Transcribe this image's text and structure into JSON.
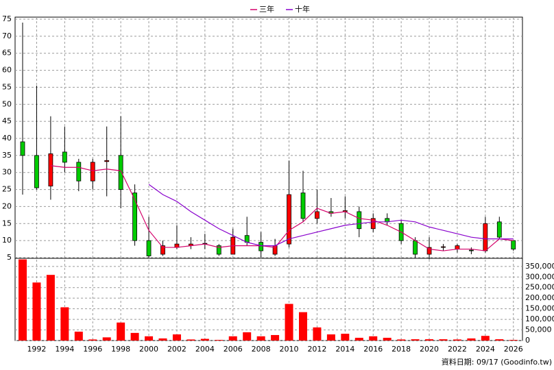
{
  "chart_data": [
    {
      "type": "candlestick",
      "categories": [
        null,
        "1992",
        null,
        "1994",
        null,
        "1996",
        null,
        "1998",
        null,
        "2000",
        null,
        "2002",
        null,
        "2004",
        null,
        "2006",
        null,
        "2008",
        null,
        "2010",
        null,
        "2012",
        null,
        "2014",
        null,
        "2016",
        null,
        "2018",
        null,
        "2020",
        null,
        "2022",
        null,
        "2024",
        null,
        "2026"
      ],
      "open": [
        39,
        35,
        26,
        36,
        33,
        27.5,
        33.2,
        35,
        24,
        10,
        6,
        8,
        8.5,
        9,
        8.5,
        6,
        11.5,
        9.5,
        6,
        9,
        24,
        16.5,
        18.5,
        18.5,
        18.5,
        13.5,
        16.5,
        15,
        10,
        6,
        8,
        7.5,
        7.2,
        7,
        15.5,
        10
      ],
      "high": [
        74,
        55.5,
        46.5,
        43.5,
        34,
        34,
        43.5,
        46.5,
        26.5,
        17,
        10,
        14.5,
        11,
        12,
        9,
        13.5,
        17,
        12.5,
        10.5,
        33.5,
        30.5,
        25,
        22.5,
        23,
        20,
        18,
        18,
        16,
        11,
        11,
        9,
        9,
        8,
        17,
        17,
        10
      ],
      "low": [
        23.5,
        25,
        22,
        30,
        24.5,
        25,
        23,
        19.5,
        8.5,
        5,
        5.5,
        7.5,
        7.5,
        7.5,
        5.5,
        6,
        8.5,
        5,
        5.5,
        8,
        15.5,
        15,
        17,
        16.5,
        11,
        12.5,
        14.5,
        9,
        5,
        4.5,
        7,
        6.5,
        6,
        6.5,
        10.5,
        7
      ],
      "close": [
        35,
        25.5,
        35.5,
        33,
        27.5,
        33,
        33.5,
        25,
        10,
        5.5,
        8.5,
        9,
        9,
        9.2,
        6,
        11,
        9.5,
        7,
        8.5,
        23.5,
        16.5,
        18.5,
        18,
        18.8,
        13.5,
        16.5,
        15.5,
        10,
        6,
        8,
        8.2,
        8.5,
        7,
        15,
        11,
        7.5
      ],
      "up_color": "#ff0000",
      "down_color": "#00cc00",
      "series": [
        {
          "name": "三年",
          "color": "#d4006a",
          "values": [
            null,
            null,
            32,
            31.5,
            31.5,
            30.5,
            31,
            30.5,
            22,
            13,
            8,
            8,
            8.5,
            9,
            8,
            8.5,
            8.5,
            8.5,
            8,
            13,
            15.5,
            19.5,
            18,
            18.5,
            16.5,
            16,
            14.5,
            12.5,
            10,
            7.5,
            7,
            7.5,
            7.5,
            7,
            10.5,
            10
          ]
        },
        {
          "name": "十年",
          "color": "#8800cc",
          "values": [
            null,
            null,
            null,
            null,
            null,
            null,
            null,
            null,
            null,
            26.5,
            23.5,
            21.5,
            18.5,
            16,
            13.5,
            11.5,
            9.5,
            8.5,
            8.5,
            10.5,
            11.5,
            12.5,
            13.5,
            14.5,
            15,
            15.5,
            15.5,
            16,
            15.5,
            14,
            13,
            12,
            11,
            10.5,
            10.5,
            10.5
          ]
        }
      ],
      "ylim": [
        5,
        75
      ],
      "yticks": [
        5,
        10,
        15,
        20,
        25,
        30,
        35,
        40,
        45,
        50,
        55,
        60,
        65,
        70,
        75
      ],
      "grid": true
    },
    {
      "type": "bar",
      "color": "#ff0000",
      "values": [
        383000,
        274000,
        310000,
        157000,
        42000,
        5000,
        15000,
        85000,
        36000,
        20000,
        10000,
        29000,
        5000,
        8000,
        3000,
        20000,
        39000,
        20000,
        26000,
        173000,
        134000,
        62000,
        29000,
        32000,
        13000,
        20000,
        13000,
        5000,
        6000,
        6000,
        6000,
        5000,
        10000,
        22000,
        6000,
        3000
      ],
      "ylim": [
        0,
        385000
      ],
      "yticks": [
        0,
        {
          "value": 50000,
          "label": "50,000"
        },
        {
          "value": 100000,
          "label": "100,000"
        },
        {
          "value": 150000,
          "label": "150,000"
        },
        {
          "value": 200000,
          "label": "200,000"
        },
        {
          "value": 250000,
          "label": "250,000"
        },
        {
          "value": 300000,
          "label": "300,000"
        },
        {
          "value": 350000,
          "label": "350,000"
        }
      ],
      "grid": true
    }
  ],
  "footer": "資料日期: 09/17 (Goodinfo.tw)"
}
